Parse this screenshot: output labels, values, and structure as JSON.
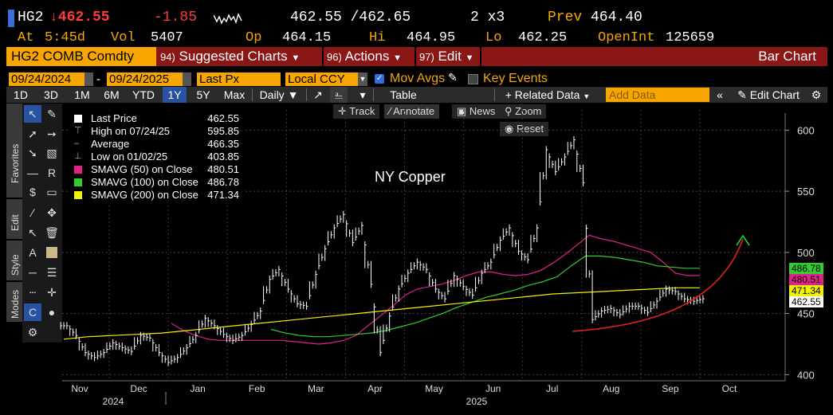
{
  "header": {
    "ticker": "HG2",
    "last": "↓462.55",
    "change": "-1.85",
    "bidask": "462.55 /462.65",
    "size": "2 x3",
    "prev_label": "Prev",
    "prev": "464.40",
    "at_label": "At",
    "at_time": "5:45d",
    "vol_label": "Vol",
    "vol": "5407",
    "op_label": "Op",
    "op": "464.15",
    "hi_label": "Hi",
    "hi": "464.95",
    "lo_label": "Lo",
    "lo": "462.25",
    "oi_label": "OpenInt",
    "oi": "125659"
  },
  "menubar": {
    "security": "HG2 COMB Comdty",
    "suggested_num": "94)",
    "suggested": "Suggested Charts",
    "actions_num": "96)",
    "actions": "Actions",
    "edit_num": "97)",
    "edit": "Edit",
    "chart_type": "Bar Chart"
  },
  "range": {
    "start": "09/24/2024",
    "dash": "-",
    "end": "09/24/2025",
    "field": "Last Px",
    "currency": "Local CCY",
    "movavgs": "Mov Avgs",
    "keyevents": "Key Events"
  },
  "toolbar": {
    "periods": [
      "1D",
      "3D",
      "1M",
      "6M",
      "YTD",
      "1Y",
      "5Y",
      "Max"
    ],
    "selected": "1Y",
    "freq": "Daily ▼",
    "table": "Table",
    "related": "+ Related Data",
    "add_placeholder": "Add Data",
    "edit_chart": "Edit Chart"
  },
  "sidetabs": {
    "favorites": "Favorites",
    "edit": "Edit",
    "style": "Style",
    "modes": "Modes"
  },
  "chart_buttons": {
    "track": "Track",
    "annotate": "Annotate",
    "news": "News",
    "zoom": "Zoom",
    "reset": "Reset"
  },
  "legend": [
    {
      "name": "Last Price",
      "value": "462.55",
      "color": "#ffffff",
      "kind": "box"
    },
    {
      "name": "High on 07/24/25",
      "value": "595.85",
      "color": "#aaaaaa",
      "kind": "high"
    },
    {
      "name": "Average",
      "value": "466.35",
      "color": "#aaaaaa",
      "kind": "avg"
    },
    {
      "name": "Low on 01/02/25",
      "value": "403.85",
      "color": "#aaaaaa",
      "kind": "low"
    },
    {
      "name": "SMAVG (50)  on Close",
      "value": "480.51",
      "color": "#e0218a",
      "kind": "box"
    },
    {
      "name": "SMAVG (100)  on Close",
      "value": "486.78",
      "color": "#33cc33",
      "kind": "box"
    },
    {
      "name": "SMAVG (200)  on Close",
      "value": "471.34",
      "color": "#f2f200",
      "kind": "box"
    }
  ],
  "tags": [
    {
      "text": "486.78",
      "color": "#33cc33",
      "price": 486.78
    },
    {
      "text": "480.51",
      "color": "#e0218a",
      "price": 480.51
    },
    {
      "text": "471.34",
      "color": "#f2f200",
      "price": 471.34
    },
    {
      "text": "462.55",
      "color": "#ffffff",
      "price": 462.55
    }
  ],
  "chart_data": {
    "type": "bar",
    "annotation": "NY Copper",
    "ylim": [
      395,
      610
    ],
    "yticks": [
      400,
      450,
      500,
      550,
      600
    ],
    "xlabels": [
      "Nov",
      "Dec",
      "Jan",
      "Feb",
      "Mar",
      "Apr",
      "May",
      "Jun",
      "Jul",
      "Aug",
      "Sep",
      "Oct"
    ],
    "years": [
      "2024",
      "2025"
    ],
    "series": [
      {
        "name": "Last Price",
        "color": "#ffffff",
        "values": [
          440,
          432,
          418,
          414,
          418,
          426,
          422,
          419,
          432,
          430,
          418,
          410,
          414,
          422,
          432,
          446,
          440,
          433,
          428,
          432,
          441,
          452,
          478,
          486,
          470,
          458,
          456,
          482,
          503,
          520,
          531,
          508,
          522,
          474,
          418,
          448,
          470,
          483,
          492,
          486,
          470,
          462,
          481,
          472,
          465,
          483,
          492,
          510,
          520,
          501,
          494,
          520,
          584,
          566,
          578,
          592,
          557,
          445,
          452,
          454,
          449,
          456,
          456,
          451,
          460,
          470,
          468,
          462,
          460,
          462
        ]
      },
      {
        "name": "SMAVG (50)",
        "color": "#e0218a",
        "values": [
          442,
          436,
          432,
          429,
          428,
          428,
          428,
          428,
          428,
          428,
          427,
          426,
          425,
          426,
          428,
          432,
          440,
          448,
          456,
          465,
          470,
          472,
          474,
          477,
          481,
          484,
          484,
          482,
          481,
          482,
          485,
          491,
          498,
          506,
          514,
          511,
          509,
          506,
          503,
          500,
          492,
          483,
          481,
          481
        ]
      },
      {
        "name": "SMAVG (100)",
        "color": "#33cc33",
        "values": [
          437,
          434,
          432,
          431,
          431,
          432,
          433,
          434,
          436,
          439,
          442,
          446,
          450,
          455,
          459,
          463,
          466,
          469,
          473,
          476,
          480,
          489,
          497,
          497,
          496,
          494,
          492,
          489,
          488,
          487,
          487
        ]
      },
      {
        "name": "SMAVG (200)",
        "color": "#f2f200",
        "values": [
          429,
          431,
          432,
          433,
          434,
          436,
          438,
          440,
          442,
          444,
          446,
          448,
          450,
          452,
          454,
          456,
          458,
          460,
          462,
          464,
          466,
          467,
          468,
          469,
          470,
          471,
          471
        ]
      }
    ]
  }
}
